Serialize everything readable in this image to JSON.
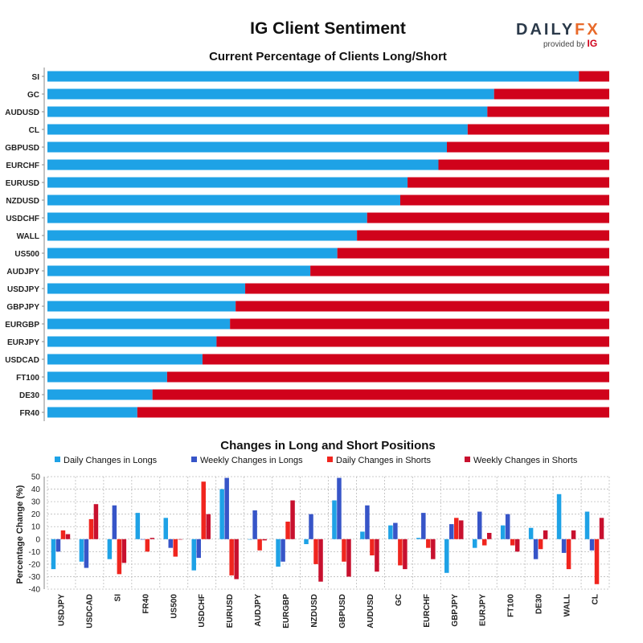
{
  "header": {
    "title": "IG Client Sentiment",
    "logo_text_main": "DAILY",
    "logo_text_accent": "FX",
    "logo_sub": "provided by",
    "logo_ig": "IG"
  },
  "colors": {
    "long": "#1ea2e6",
    "short": "#d0021b",
    "daily_longs": "#1ea2e6",
    "weekly_longs": "#3755c8",
    "daily_shorts": "#f0251e",
    "weekly_shorts": "#c8102e",
    "grid": "#bbbbbb"
  },
  "chart_data": [
    {
      "type": "bar",
      "orientation": "horizontal",
      "stacked": true,
      "title": "Current Percentage of Clients Long/Short",
      "categories": [
        "SI",
        "GC",
        "AUDUSD",
        "CL",
        "GBPUSD",
        "EURCHF",
        "EURUSD",
        "NZDUSD",
        "USDCHF",
        "WALL",
        "US500",
        "AUDJPY",
        "USDJPY",
        "GBPJPY",
        "EURGBP",
        "EURJPY",
        "USDCAD",
        "FT100",
        "DE30",
        "FR40"
      ],
      "series": [
        {
          "values": [
            94.6,
            79.5,
            78.3,
            74.8,
            71.1,
            69.6,
            64.1,
            62.8,
            56.9,
            55.1,
            51.6,
            46.8,
            35.2,
            33.5,
            32.5,
            30.1,
            27.6,
            21.3,
            18.7,
            16.0
          ]
        },
        {
          "values": [
            5.4,
            20.5,
            21.7,
            25.2,
            28.9,
            30.4,
            35.9,
            37.2,
            43.1,
            44.9,
            48.4,
            53.2,
            64.8,
            66.5,
            67.5,
            69.9,
            72.4,
            78.7,
            81.3,
            84.0
          ]
        }
      ],
      "xlim": [
        0,
        100
      ],
      "grid": false
    },
    {
      "type": "bar",
      "title": "Changes in Long and Short Positions",
      "ylabel": "Percentage Change (%)",
      "ylim": [
        -40,
        50
      ],
      "yticks": [
        50,
        40,
        30,
        20,
        10,
        0,
        -10,
        -20,
        -30,
        -40
      ],
      "grid": true,
      "legend_position": "top",
      "categories": [
        "USDJPY",
        "USDCAD",
        "SI",
        "FR40",
        "US500",
        "USDCHF",
        "EURUSD",
        "AUDJPY",
        "EURGBP",
        "NZDUSD",
        "GBPUSD",
        "AUDUSD",
        "GC",
        "EURCHF",
        "GBPJPY",
        "EURJPY",
        "FT100",
        "DE30",
        "WALL",
        "CL"
      ],
      "series": [
        {
          "name": "Daily Changes in Longs",
          "values": [
            -24,
            -18,
            -16,
            21,
            17,
            -25,
            40,
            0,
            -22,
            -4,
            31,
            6,
            11,
            1,
            -27,
            -7,
            11,
            9,
            36,
            22
          ]
        },
        {
          "name": "Weekly Changes in Longs",
          "values": [
            -10,
            -23,
            27,
            0,
            -7,
            -15,
            49,
            23,
            -18,
            20,
            49,
            27,
            13,
            21,
            12,
            22,
            20,
            -16,
            -11,
            -9
          ]
        },
        {
          "name": "Daily Changes in Shorts",
          "values": [
            7,
            16,
            -28,
            -10,
            -14,
            46,
            -29,
            -9,
            14,
            -20,
            -18,
            -13,
            -21,
            -7,
            17,
            -5,
            -5,
            -8,
            -24,
            -36
          ]
        },
        {
          "name": "Weekly Changes in Shorts",
          "values": [
            4,
            28,
            -19,
            1,
            0,
            20,
            -32,
            -1,
            31,
            -34,
            -30,
            -26,
            -24,
            -16,
            15,
            5,
            -10,
            7,
            7,
            17
          ]
        }
      ]
    }
  ]
}
